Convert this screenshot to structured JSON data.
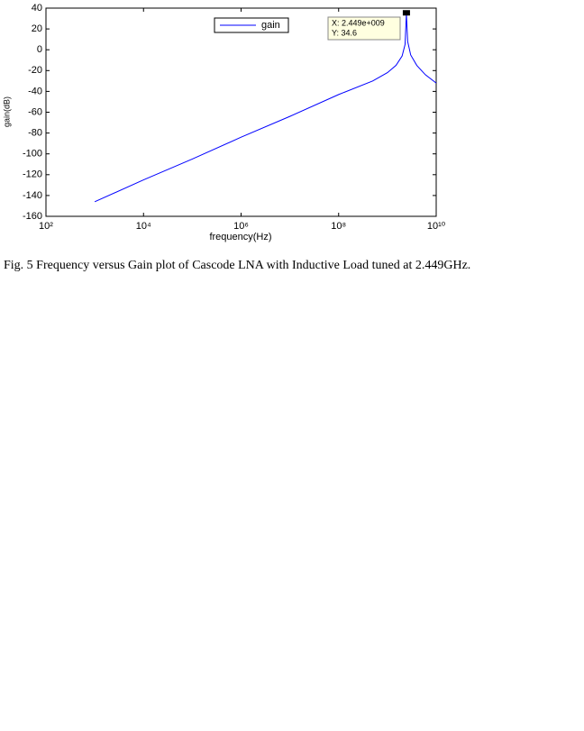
{
  "chart_data": {
    "type": "line",
    "y_label": "gain(dB)",
    "x_label": "frequency(Hz)",
    "x": [
      1000,
      10000,
      100000,
      1000000,
      10000000,
      100000000,
      500000000,
      1000000000,
      1500000000,
      2000000000,
      2300000000,
      2449000000,
      2600000000,
      3000000000,
      4000000000,
      6000000000,
      10000000000
    ],
    "series": [
      {
        "name": "gain",
        "color": "#0000ff",
        "values": [
          -146,
          -125,
          -105,
          -84,
          -64,
          -43,
          -30,
          -22,
          -15,
          -6,
          5,
          34.6,
          8,
          -5,
          -15,
          -24,
          -32
        ]
      }
    ],
    "xlim": [
      100,
      10000000000
    ],
    "xscale": "log",
    "xticks": [
      {
        "value": 100,
        "label": "10²"
      },
      {
        "value": 10000,
        "label": "10⁴"
      },
      {
        "value": 1000000,
        "label": "10⁶"
      },
      {
        "value": 100000000,
        "label": "10⁸"
      },
      {
        "value": 10000000000,
        "label": "10¹⁰"
      }
    ],
    "ylim": [
      -160,
      40
    ],
    "yticks": [
      -160,
      -140,
      -120,
      -100,
      -80,
      -60,
      -40,
      -20,
      0,
      20,
      40
    ],
    "grid": false,
    "legend": "top",
    "datatip": {
      "x_text": "X: 2.449e+009",
      "y_text": "Y: 34.6",
      "x": 2449000000,
      "y": 34.6
    }
  },
  "caption": "Fig. 5 Frequency versus Gain plot of Cascode LNA with Inductive Load tuned at 2.449GHz."
}
